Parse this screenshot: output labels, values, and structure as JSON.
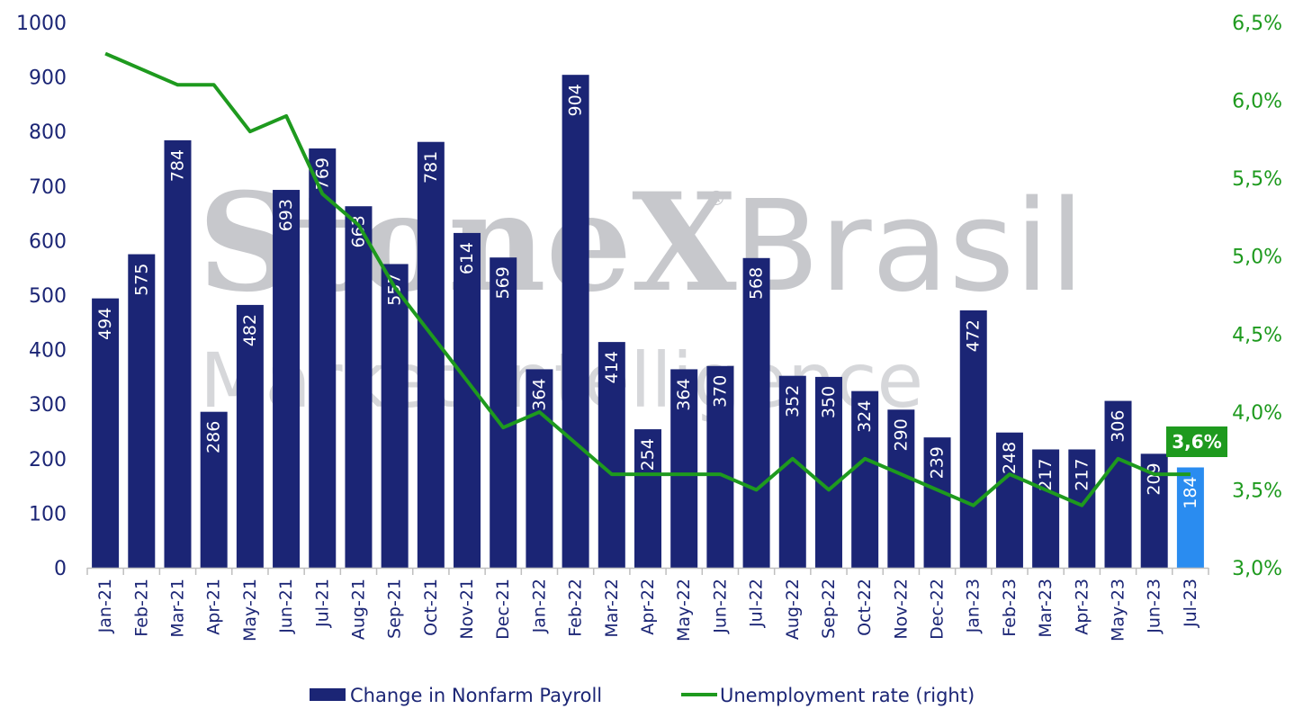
{
  "watermark": {
    "brand": "StoneX",
    "suffix": "Brasil",
    "tagline": "Market Intelligence",
    "registered": "®"
  },
  "colors": {
    "bar": "#1b2575",
    "bar_highlight": "#2a8cf0",
    "line": "#1e9a1e",
    "left_axis": "#1b2575",
    "right_axis": "#1e9a1e"
  },
  "chart_data": {
    "type": "bar",
    "categories": [
      "Jan-21",
      "Feb-21",
      "Mar-21",
      "Apr-21",
      "May-21",
      "Jun-21",
      "Jul-21",
      "Aug-21",
      "Sep-21",
      "Oct-21",
      "Nov-21",
      "Dec-21",
      "Jan-22",
      "Feb-22",
      "Mar-22",
      "Apr-22",
      "May-22",
      "Jun-22",
      "Jul-22",
      "Aug-22",
      "Sep-22",
      "Oct-22",
      "Nov-22",
      "Dec-22",
      "Jan-23",
      "Feb-23",
      "Mar-23",
      "Apr-23",
      "May-23",
      "Jun-23",
      "Jul-23"
    ],
    "series": [
      {
        "name": "Change in Nonfarm Payroll",
        "type": "bar",
        "axis": "left",
        "values": [
          494,
          575,
          784,
          286,
          482,
          693,
          769,
          663,
          557,
          781,
          614,
          569,
          364,
          904,
          414,
          254,
          364,
          370,
          568,
          352,
          350,
          324,
          290,
          239,
          472,
          248,
          217,
          217,
          306,
          209,
          184
        ],
        "highlight_last": true
      },
      {
        "name": "Unemployment rate (right)",
        "type": "line",
        "axis": "right",
        "values": [
          6.3,
          6.2,
          6.1,
          6.1,
          5.8,
          5.9,
          5.4,
          5.2,
          4.8,
          4.5,
          4.2,
          3.9,
          4.0,
          3.8,
          3.6,
          3.6,
          3.6,
          3.6,
          3.5,
          3.7,
          3.5,
          3.7,
          3.6,
          3.5,
          3.4,
          3.6,
          3.5,
          3.4,
          3.7,
          3.6,
          3.6
        ]
      }
    ],
    "y_left": {
      "range": [
        0,
        1000
      ],
      "ticks": [
        "0",
        "100",
        "200",
        "300",
        "400",
        "500",
        "600",
        "700",
        "800",
        "900",
        "1000"
      ]
    },
    "y_right": {
      "range": [
        3.0,
        6.5
      ],
      "ticks": [
        "3,0%",
        "3,5%",
        "4,0%",
        "4,5%",
        "5,0%",
        "5,5%",
        "6,0%",
        "6,5%"
      ]
    },
    "callout": "3,6%",
    "legend_position": "bottom",
    "grid": false
  }
}
